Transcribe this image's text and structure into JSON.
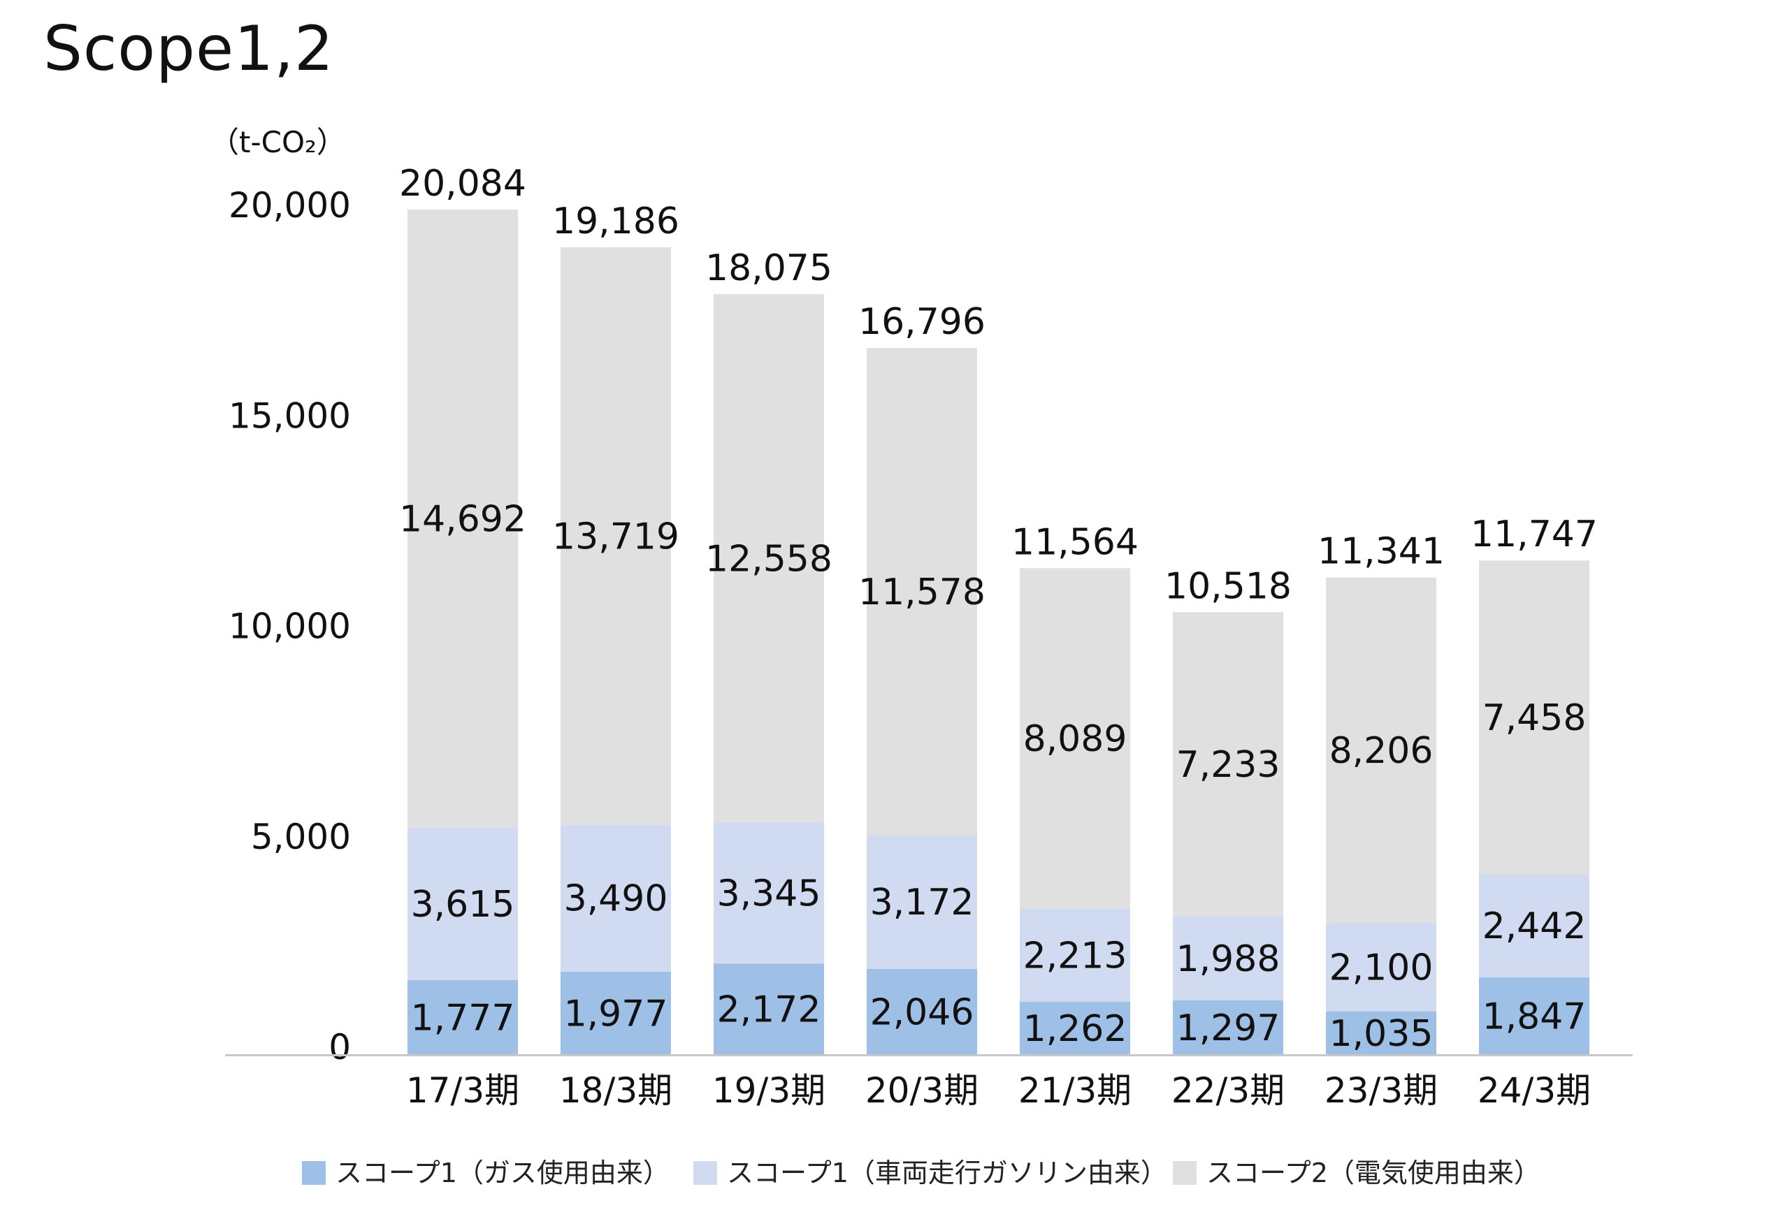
{
  "title": "Scope1,2",
  "chart_data": {
    "type": "bar",
    "stacked": true,
    "unit_label": "（t-CO₂）",
    "categories": [
      "17/3期",
      "18/3期",
      "19/3期",
      "20/3期",
      "21/3期",
      "22/3期",
      "23/3期",
      "24/3期"
    ],
    "series": [
      {
        "name": "スコープ1（ガス使用由来）",
        "color": "#9fc0e6",
        "values": [
          1777,
          1977,
          2172,
          2046,
          1262,
          1297,
          1035,
          1847
        ],
        "labels": [
          "1,777",
          "1,977",
          "2,172",
          "2,046",
          "1,262",
          "1,297",
          "1,035",
          "1,847"
        ]
      },
      {
        "name": "スコープ1（車両走行ガソリン由来）",
        "color": "#d0daf0",
        "values": [
          3615,
          3490,
          3345,
          3172,
          2213,
          1988,
          2100,
          2442
        ],
        "labels": [
          "3,615",
          "3,490",
          "3,345",
          "3,172",
          "2,213",
          "1,988",
          "2,100",
          "2,442"
        ]
      },
      {
        "name": "スコープ2（電気使用由来）",
        "color": "#e0e0e0",
        "values": [
          14692,
          13719,
          12558,
          11578,
          8089,
          7233,
          8206,
          7458
        ],
        "labels": [
          "14,692",
          "13,719",
          "12,558",
          "11,578",
          "8,089",
          "7,233",
          "8,206",
          "7,458"
        ]
      }
    ],
    "totals": [
      "20,084",
      "19,186",
      "18,075",
      "16,796",
      "11,564",
      "10,518",
      "11,341",
      "11,747"
    ],
    "y_ticks": [
      0,
      5000,
      10000,
      15000,
      20000
    ],
    "y_tick_labels": [
      "0",
      "5,000",
      "10,000",
      "15,000",
      "20,000"
    ],
    "ylim": [
      0,
      20000
    ],
    "grid": false,
    "legend_position": "bottom"
  }
}
